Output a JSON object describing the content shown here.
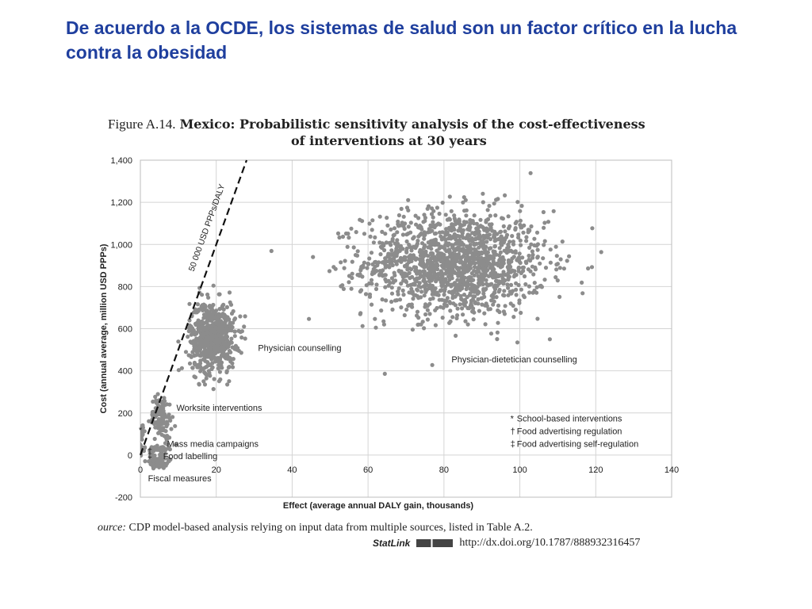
{
  "slide": {
    "title": "De acuerdo a la OCDE, los sistemas de salud son un factor crítico en la lucha contra la obesidad"
  },
  "figure": {
    "label": "Figure A.14.",
    "title_line1": "Mexico: Probabilistic sensitivity analysis of the cost-effectiveness",
    "title_line2": "of interventions at 30 years",
    "source_label": "ource:",
    "source_text": "CDP model-based analysis relying on input data from multiple sources, listed in Table A.2.",
    "statlink_name": "StatLink",
    "statlink_url": "http://dx.doi.org/10.1787/888932316457"
  },
  "chart_data": {
    "type": "scatter",
    "xlabel": "Effect (average annual DALY gain, thousands)",
    "ylabel": "Cost (annual average, million USD PPPs)",
    "xlim": [
      0,
      140
    ],
    "ylim": [
      -200,
      1400
    ],
    "x_ticks": [
      "0",
      "20",
      "40",
      "60",
      "80",
      "100",
      "120",
      "140"
    ],
    "y_ticks": [
      "-200",
      "0",
      "200",
      "400",
      "600",
      "800",
      "1,000",
      "1,200",
      "1,400"
    ],
    "grid": true,
    "threshold_line": {
      "label": "50 000 USD PPPs/DALY",
      "slope_usd_per_daly": 50000,
      "points": [
        [
          0,
          0
        ],
        [
          28,
          1400
        ]
      ]
    },
    "clusters": [
      {
        "name": "Physician-dietetician counselling",
        "center": [
          83,
          910
        ],
        "spread": [
          12,
          125
        ],
        "n": 1500,
        "label_at": [
          83,
          440
        ]
      },
      {
        "name": "Physician counselling",
        "center": [
          19,
          560
        ],
        "spread": [
          3,
          85
        ],
        "n": 650,
        "label_at": [
          31,
          495
        ]
      },
      {
        "name": "Worksite interventions",
        "center": [
          5.5,
          180
        ],
        "spread": [
          1.4,
          50
        ],
        "n": 120,
        "label_at": [
          9.5,
          210
        ]
      },
      {
        "name": "Mass media campaigns",
        "center": [
          5,
          30
        ],
        "spread": [
          1.2,
          9
        ],
        "n": 45,
        "label_at": [
          7,
          40
        ]
      },
      {
        "name": "Food labelling",
        "center": [
          4.5,
          -20
        ],
        "spread": [
          1.5,
          12
        ],
        "n": 45,
        "label_at": [
          6,
          -20
        ]
      },
      {
        "name": "Fiscal measures",
        "center": [
          4.5,
          -45
        ],
        "spread": [
          1.5,
          10
        ],
        "n": 50,
        "label_at": [
          2,
          -125
        ]
      },
      {
        "name": "School-based interventions",
        "center": [
          0.4,
          90
        ],
        "spread": [
          0.3,
          40
        ],
        "n": 30,
        "marker": "*"
      },
      {
        "name": "Food advertising regulation",
        "center": [
          0.2,
          25
        ],
        "spread": [
          0.1,
          5
        ],
        "n": 5,
        "marker": "†"
      },
      {
        "name": "Food advertising self-regulation",
        "center": [
          0.1,
          5
        ],
        "spread": [
          0.05,
          3
        ],
        "n": 5,
        "marker": "‡"
      }
    ],
    "legend": {
      "placement": "bottom-right",
      "entries": [
        {
          "symbol": "*",
          "label": "School-based interventions"
        },
        {
          "symbol": "†",
          "label": "Food advertising regulation"
        },
        {
          "symbol": "‡",
          "label": "Food advertising self-regulation"
        }
      ]
    },
    "marker_symbols": [
      {
        "symbol": "*",
        "at": [
          0,
          120
        ]
      },
      {
        "symbol": "†",
        "at": [
          2.5,
          20
        ]
      },
      {
        "symbol": "‡",
        "at": [
          2.5,
          0
        ]
      }
    ],
    "colors": {
      "points": "#8c8c8c",
      "grid": "#d4d4d4",
      "axis": "#666666",
      "line": "#111111"
    }
  }
}
